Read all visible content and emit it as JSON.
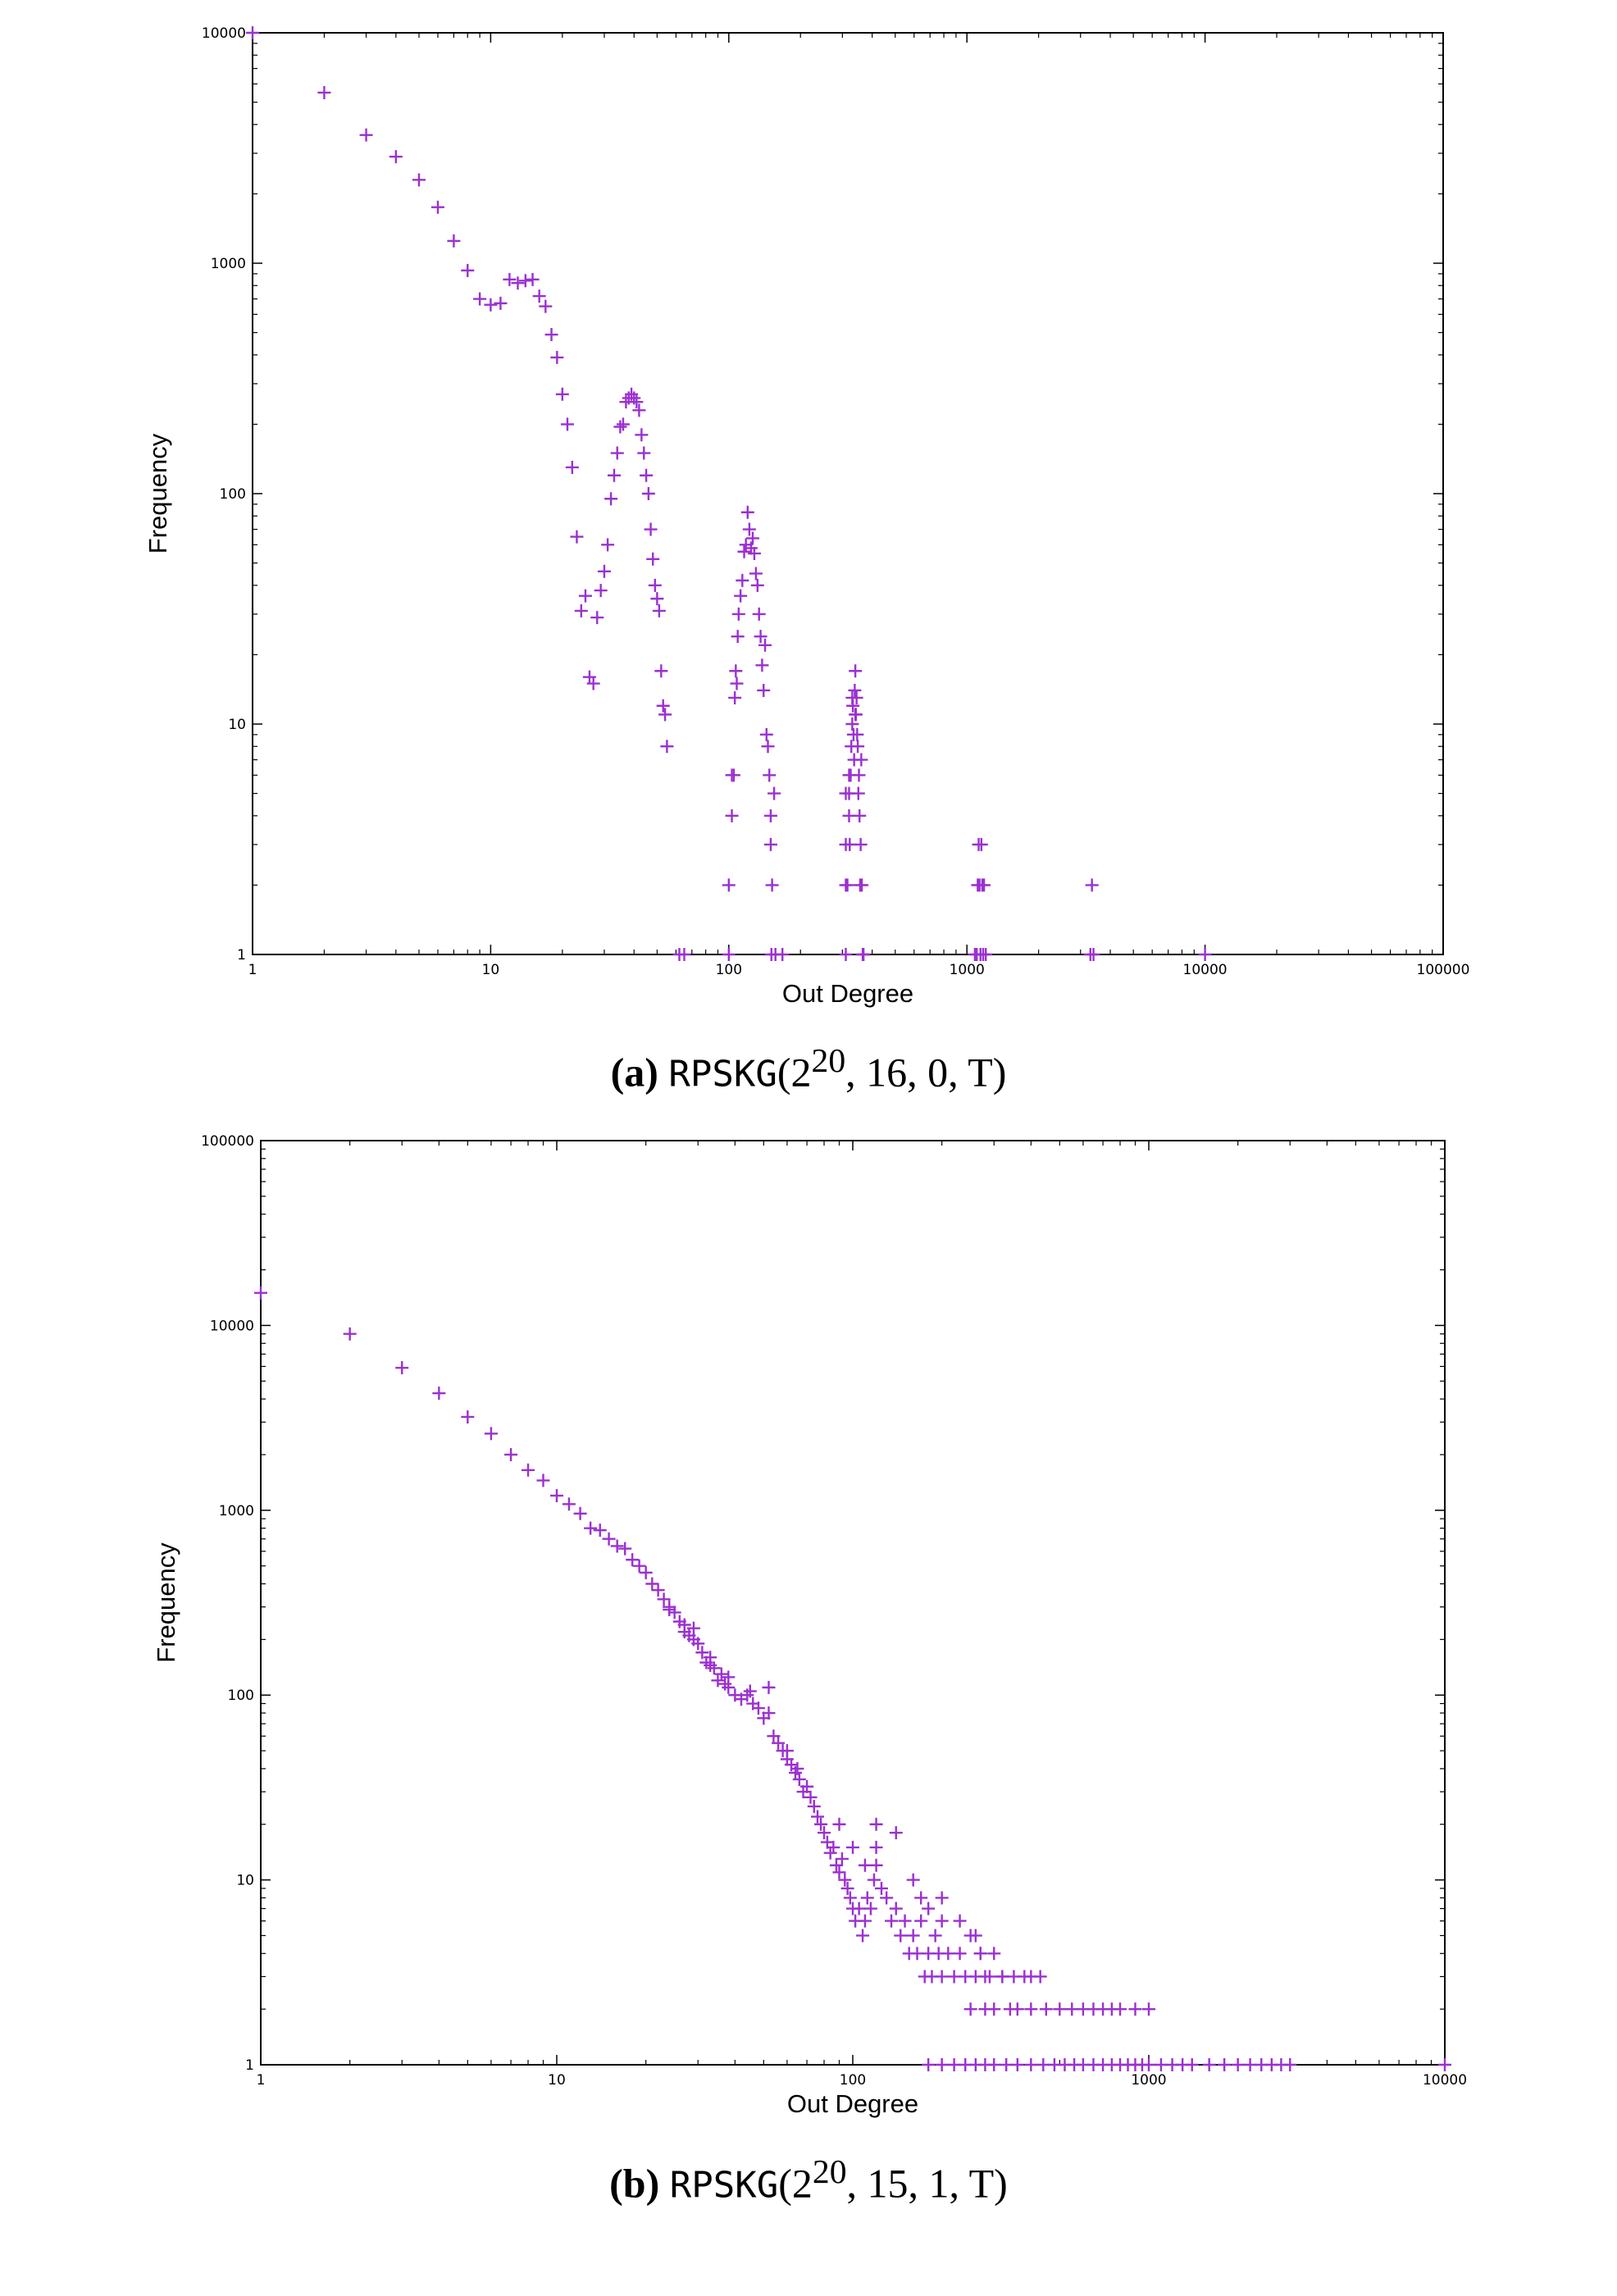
{
  "chart_data": [
    {
      "id": "a",
      "type": "scatter",
      "title": "",
      "xlabel": "Out Degree",
      "ylabel": "Frequency",
      "xscale": "log",
      "yscale": "log",
      "xlim": [
        1,
        100000
      ],
      "ylim": [
        1,
        10000
      ],
      "xticks": [
        "1",
        "10",
        "100",
        "1000",
        "10000",
        "100000"
      ],
      "yticks": [
        "1",
        "10",
        "100",
        "1000",
        "10000"
      ],
      "marker": "plus",
      "color": "#9b30d0",
      "caption": {
        "label": "(a)",
        "name": "RPSKG",
        "args": "(2",
        "sup": "20",
        "rest": ", 16, 0, T)"
      },
      "points": [
        [
          1,
          10000
        ],
        [
          2,
          5500
        ],
        [
          3,
          3600
        ],
        [
          4,
          2900
        ],
        [
          5,
          2300
        ],
        [
          6,
          1750
        ],
        [
          7,
          1250
        ],
        [
          8,
          930
        ],
        [
          9,
          700
        ],
        [
          10,
          660
        ],
        [
          11,
          670
        ],
        [
          12,
          850
        ],
        [
          13,
          820
        ],
        [
          14,
          840
        ],
        [
          15,
          850
        ],
        [
          16,
          720
        ],
        [
          17,
          650
        ],
        [
          18,
          490
        ],
        [
          19,
          390
        ],
        [
          20,
          270
        ],
        [
          21,
          200
        ],
        [
          22,
          130
        ],
        [
          23,
          65
        ],
        [
          24,
          31
        ],
        [
          25,
          36
        ],
        [
          26,
          16
        ],
        [
          27,
          15
        ],
        [
          28,
          29
        ],
        [
          29,
          38
        ],
        [
          30,
          46
        ],
        [
          31,
          60
        ],
        [
          32,
          95
        ],
        [
          33,
          120
        ],
        [
          34,
          150
        ],
        [
          35,
          195
        ],
        [
          36,
          200
        ],
        [
          37,
          250
        ],
        [
          38,
          260
        ],
        [
          39,
          270
        ],
        [
          40,
          260
        ],
        [
          41,
          250
        ],
        [
          42,
          230
        ],
        [
          43,
          180
        ],
        [
          44,
          150
        ],
        [
          45,
          120
        ],
        [
          46,
          100
        ],
        [
          47,
          70
        ],
        [
          48,
          52
        ],
        [
          49,
          40
        ],
        [
          50,
          35
        ],
        [
          51,
          31
        ],
        [
          52,
          17
        ],
        [
          53,
          12
        ],
        [
          54,
          11
        ],
        [
          55,
          8
        ],
        [
          62,
          1
        ],
        [
          65,
          1
        ],
        [
          100,
          1
        ],
        [
          100,
          2
        ],
        [
          103,
          4
        ],
        [
          103,
          6
        ],
        [
          105,
          6
        ],
        [
          106,
          13
        ],
        [
          107,
          17
        ],
        [
          108,
          15
        ],
        [
          109,
          24
        ],
        [
          110,
          30
        ],
        [
          112,
          36
        ],
        [
          114,
          42
        ],
        [
          116,
          56
        ],
        [
          118,
          60
        ],
        [
          120,
          83
        ],
        [
          122,
          70
        ],
        [
          124,
          58
        ],
        [
          126,
          64
        ],
        [
          128,
          55
        ],
        [
          130,
          45
        ],
        [
          132,
          40
        ],
        [
          134,
          30
        ],
        [
          136,
          24
        ],
        [
          138,
          18
        ],
        [
          140,
          14
        ],
        [
          142,
          22
        ],
        [
          144,
          9
        ],
        [
          146,
          8
        ],
        [
          148,
          6
        ],
        [
          150,
          3
        ],
        [
          150,
          4
        ],
        [
          151,
          1
        ],
        [
          152,
          2
        ],
        [
          155,
          5
        ],
        [
          157,
          1
        ],
        [
          168,
          1
        ],
        [
          310,
          1
        ],
        [
          310,
          2
        ],
        [
          310,
          5
        ],
        [
          310,
          3
        ],
        [
          315,
          2
        ],
        [
          320,
          4
        ],
        [
          320,
          5
        ],
        [
          322,
          3
        ],
        [
          325,
          6
        ],
        [
          327,
          8
        ],
        [
          330,
          10
        ],
        [
          332,
          12
        ],
        [
          334,
          9
        ],
        [
          336,
          7
        ],
        [
          338,
          14
        ],
        [
          340,
          17
        ],
        [
          342,
          11
        ],
        [
          344,
          13
        ],
        [
          346,
          9
        ],
        [
          348,
          8
        ],
        [
          350,
          5
        ],
        [
          352,
          6
        ],
        [
          354,
          4
        ],
        [
          356,
          2
        ],
        [
          358,
          3
        ],
        [
          360,
          7
        ],
        [
          362,
          2
        ],
        [
          365,
          1
        ],
        [
          368,
          1
        ],
        [
          320,
          6
        ],
        [
          330,
          13
        ],
        [
          340,
          11
        ],
        [
          1080,
          1
        ],
        [
          1100,
          1
        ],
        [
          1110,
          2
        ],
        [
          1120,
          3
        ],
        [
          1130,
          2
        ],
        [
          1140,
          1
        ],
        [
          1150,
          3
        ],
        [
          1160,
          2
        ],
        [
          1170,
          1
        ],
        [
          1180,
          2
        ],
        [
          1200,
          1
        ],
        [
          3300,
          1
        ],
        [
          3350,
          2
        ],
        [
          3400,
          1
        ],
        [
          10000,
          1
        ]
      ]
    },
    {
      "id": "b",
      "type": "scatter",
      "title": "",
      "xlabel": "Out Degree",
      "ylabel": "Frequency",
      "xscale": "log",
      "yscale": "log",
      "xlim": [
        1,
        10000
      ],
      "ylim": [
        1,
        100000
      ],
      "xticks": [
        "1",
        "10",
        "100",
        "1000",
        "10000"
      ],
      "yticks": [
        "1",
        "10",
        "100",
        "1000",
        "10000",
        "100000"
      ],
      "marker": "plus",
      "color": "#9b30d0",
      "caption": {
        "label": "(b)",
        "name": "RPSKG",
        "args": "(2",
        "sup": "20",
        "rest": ", 15, 1, T)"
      },
      "points": [
        [
          1,
          15000
        ],
        [
          2,
          9000
        ],
        [
          3,
          5900
        ],
        [
          4,
          4300
        ],
        [
          5,
          3200
        ],
        [
          6,
          2600
        ],
        [
          7,
          2000
        ],
        [
          8,
          1650
        ],
        [
          9,
          1450
        ],
        [
          10,
          1200
        ],
        [
          11,
          1080
        ],
        [
          12,
          960
        ],
        [
          13,
          800
        ],
        [
          14,
          780
        ],
        [
          15,
          700
        ],
        [
          16,
          640
        ],
        [
          17,
          620
        ],
        [
          18,
          540
        ],
        [
          19,
          500
        ],
        [
          20,
          460
        ],
        [
          21,
          400
        ],
        [
          22,
          370
        ],
        [
          23,
          330
        ],
        [
          24,
          300
        ],
        [
          25,
          280
        ],
        [
          26,
          250
        ],
        [
          27,
          240
        ],
        [
          28,
          210
        ],
        [
          29,
          200
        ],
        [
          30,
          190
        ],
        [
          31,
          170
        ],
        [
          32,
          150
        ],
        [
          33,
          145
        ],
        [
          34,
          140
        ],
        [
          35,
          120
        ],
        [
          36,
          130
        ],
        [
          37,
          115
        ],
        [
          38,
          110
        ],
        [
          40,
          100
        ],
        [
          42,
          95
        ],
        [
          44,
          100
        ],
        [
          46,
          90
        ],
        [
          48,
          85
        ],
        [
          50,
          75
        ],
        [
          52,
          80
        ],
        [
          54,
          60
        ],
        [
          56,
          55
        ],
        [
          58,
          50
        ],
        [
          60,
          45
        ],
        [
          62,
          42
        ],
        [
          64,
          38
        ],
        [
          66,
          35
        ],
        [
          68,
          30
        ],
        [
          70,
          32
        ],
        [
          72,
          28
        ],
        [
          74,
          25
        ],
        [
          76,
          22
        ],
        [
          78,
          20
        ],
        [
          80,
          18
        ],
        [
          82,
          16
        ],
        [
          84,
          14
        ],
        [
          86,
          15
        ],
        [
          88,
          12
        ],
        [
          90,
          11
        ],
        [
          92,
          13
        ],
        [
          94,
          10
        ],
        [
          96,
          9
        ],
        [
          98,
          8
        ],
        [
          100,
          7
        ],
        [
          102,
          6
        ],
        [
          105,
          7
        ],
        [
          108,
          5
        ],
        [
          110,
          6
        ],
        [
          112,
          8
        ],
        [
          115,
          7
        ],
        [
          118,
          10
        ],
        [
          120,
          12
        ],
        [
          125,
          9
        ],
        [
          130,
          8
        ],
        [
          135,
          6
        ],
        [
          140,
          7
        ],
        [
          145,
          5
        ],
        [
          150,
          6
        ],
        [
          155,
          4
        ],
        [
          160,
          5
        ],
        [
          165,
          4
        ],
        [
          170,
          6
        ],
        [
          175,
          3
        ],
        [
          180,
          4
        ],
        [
          185,
          3
        ],
        [
          190,
          5
        ],
        [
          195,
          4
        ],
        [
          200,
          3
        ],
        [
          210,
          4
        ],
        [
          220,
          3
        ],
        [
          230,
          4
        ],
        [
          240,
          3
        ],
        [
          250,
          2
        ],
        [
          260,
          3
        ],
        [
          270,
          4
        ],
        [
          280,
          2
        ],
        [
          290,
          3
        ],
        [
          300,
          2
        ],
        [
          320,
          3
        ],
        [
          340,
          2
        ],
        [
          360,
          2
        ],
        [
          380,
          3
        ],
        [
          400,
          2
        ],
        [
          450,
          2
        ],
        [
          500,
          2
        ],
        [
          550,
          2
        ],
        [
          600,
          2
        ],
        [
          650,
          2
        ],
        [
          700,
          2
        ],
        [
          750,
          2
        ],
        [
          800,
          2
        ],
        [
          900,
          2
        ],
        [
          1000,
          2
        ],
        [
          180,
          1
        ],
        [
          200,
          1
        ],
        [
          220,
          1
        ],
        [
          240,
          1
        ],
        [
          260,
          1
        ],
        [
          280,
          1
        ],
        [
          300,
          1
        ],
        [
          330,
          1
        ],
        [
          360,
          1
        ],
        [
          400,
          1
        ],
        [
          440,
          1
        ],
        [
          480,
          1
        ],
        [
          520,
          1
        ],
        [
          560,
          1
        ],
        [
          600,
          1
        ],
        [
          650,
          1
        ],
        [
          700,
          1
        ],
        [
          750,
          1
        ],
        [
          800,
          1
        ],
        [
          850,
          1
        ],
        [
          900,
          1
        ],
        [
          950,
          1
        ],
        [
          1000,
          1
        ],
        [
          1100,
          1
        ],
        [
          1200,
          1
        ],
        [
          1300,
          1
        ],
        [
          1400,
          1
        ],
        [
          1600,
          1
        ],
        [
          1800,
          1
        ],
        [
          2000,
          1
        ],
        [
          2200,
          1
        ],
        [
          2400,
          1
        ],
        [
          2600,
          1
        ],
        [
          2800,
          1
        ],
        [
          3000,
          1
        ],
        [
          10000,
          1
        ],
        [
          52,
          110
        ],
        [
          45,
          105
        ],
        [
          38,
          125
        ],
        [
          24,
          290
        ],
        [
          27,
          220
        ],
        [
          29,
          230
        ],
        [
          33,
          160
        ],
        [
          60,
          50
        ],
        [
          65,
          40
        ],
        [
          90,
          20
        ],
        [
          120,
          15
        ],
        [
          140,
          18
        ],
        [
          160,
          10
        ],
        [
          170,
          8
        ],
        [
          180,
          7
        ],
        [
          200,
          6
        ],
        [
          120,
          20
        ],
        [
          100,
          15
        ],
        [
          110,
          12
        ],
        [
          200,
          8
        ],
        [
          230,
          6
        ],
        [
          250,
          5
        ],
        [
          270,
          4
        ],
        [
          300,
          4
        ],
        [
          260,
          5
        ],
        [
          280,
          3
        ],
        [
          320,
          3
        ],
        [
          350,
          3
        ],
        [
          400,
          3
        ],
        [
          430,
          3
        ]
      ]
    }
  ]
}
